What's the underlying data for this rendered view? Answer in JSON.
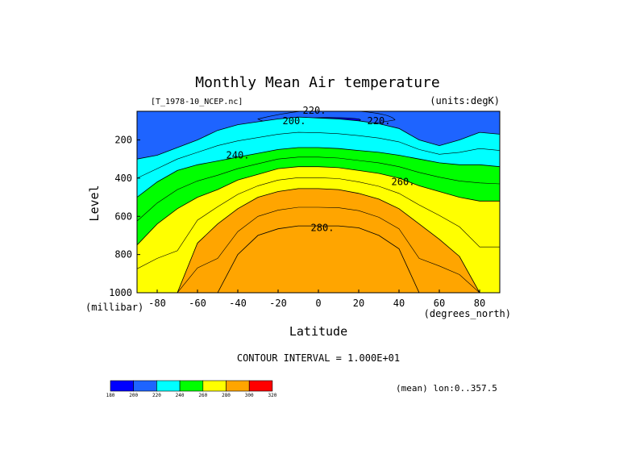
{
  "chart_data": {
    "type": "contour",
    "title": "Monthly Mean Air temperature",
    "file_label": "[T_1978-10_NCEP.nc]",
    "units_label": "(units:degK)",
    "xlabel": "Latitude",
    "ylabel": "Level",
    "x_unit": "(degrees_north)",
    "y_unit": "(millibar)",
    "xlim": [
      -90,
      90
    ],
    "ylim": [
      1000,
      50
    ],
    "y_inverted": true,
    "x_ticks": [
      -80,
      -60,
      -40,
      -20,
      0,
      20,
      40,
      60,
      80
    ],
    "y_ticks": [
      200,
      400,
      600,
      800,
      1000
    ],
    "contour_interval_text": "CONTOUR INTERVAL = 1.000E+01",
    "mean_note": "(mean) lon:0..357.5",
    "levels": [
      180,
      200,
      220,
      240,
      260,
      280,
      300,
      320
    ],
    "colorbar_labels": [
      "180",
      "200",
      "220",
      "240",
      "260",
      "280",
      "300",
      "320"
    ],
    "colors": [
      "#0000ff",
      "#1e64ff",
      "#00ffff",
      "#00ff00",
      "#ffff00",
      "#ffa500",
      "#ff0000"
    ],
    "contour_labels": [
      {
        "text": "220.",
        "lat": -2,
        "level": 45
      },
      {
        "text": "200.",
        "lat": -12,
        "level": 100
      },
      {
        "text": "220.",
        "lat": 30,
        "level": 100
      },
      {
        "text": "240.",
        "lat": -40,
        "level": 280
      },
      {
        "text": "260.",
        "lat": 42,
        "level": 420
      },
      {
        "text": "280.",
        "lat": 2,
        "level": 660
      }
    ],
    "fields": {
      "lat": [
        -90,
        -80,
        -70,
        -60,
        -50,
        -40,
        -30,
        -20,
        -10,
        0,
        10,
        20,
        30,
        40,
        50,
        60,
        70,
        80,
        90
      ],
      "band_upper_edges": [
        {
          "level": 200,
          "p": [
            null,
            null,
            null,
            null,
            null,
            null,
            null,
            null,
            -20,
            150,
            160,
            150,
            110,
            null,
            null,
            null,
            null,
            null,
            null
          ]
        },
        {
          "level": 220,
          "p": [
            300,
            280,
            240,
            200,
            150,
            120,
            105,
            90,
            80,
            85,
            90,
            100,
            115,
            140,
            200,
            230,
            200,
            160,
            170
          ]
        },
        {
          "level": 240,
          "p": [
            500,
            420,
            360,
            330,
            310,
            290,
            270,
            250,
            240,
            240,
            245,
            255,
            265,
            280,
            300,
            320,
            330,
            330,
            340
          ]
        },
        {
          "level": 260,
          "p": [
            750,
            640,
            560,
            500,
            460,
            410,
            380,
            350,
            340,
            340,
            345,
            360,
            375,
            400,
            440,
            470,
            500,
            520,
            520
          ]
        },
        {
          "level": 280,
          "p": [
            1000,
            1000,
            1000,
            740,
            640,
            560,
            500,
            470,
            455,
            455,
            460,
            480,
            510,
            560,
            640,
            720,
            810,
            1000,
            1000
          ]
        },
        {
          "level": 300,
          "p": [
            1000,
            1000,
            1000,
            1000,
            1000,
            800,
            700,
            665,
            650,
            650,
            650,
            660,
            700,
            770,
            1000,
            1000,
            1000,
            1000,
            1000
          ]
        }
      ]
    }
  }
}
